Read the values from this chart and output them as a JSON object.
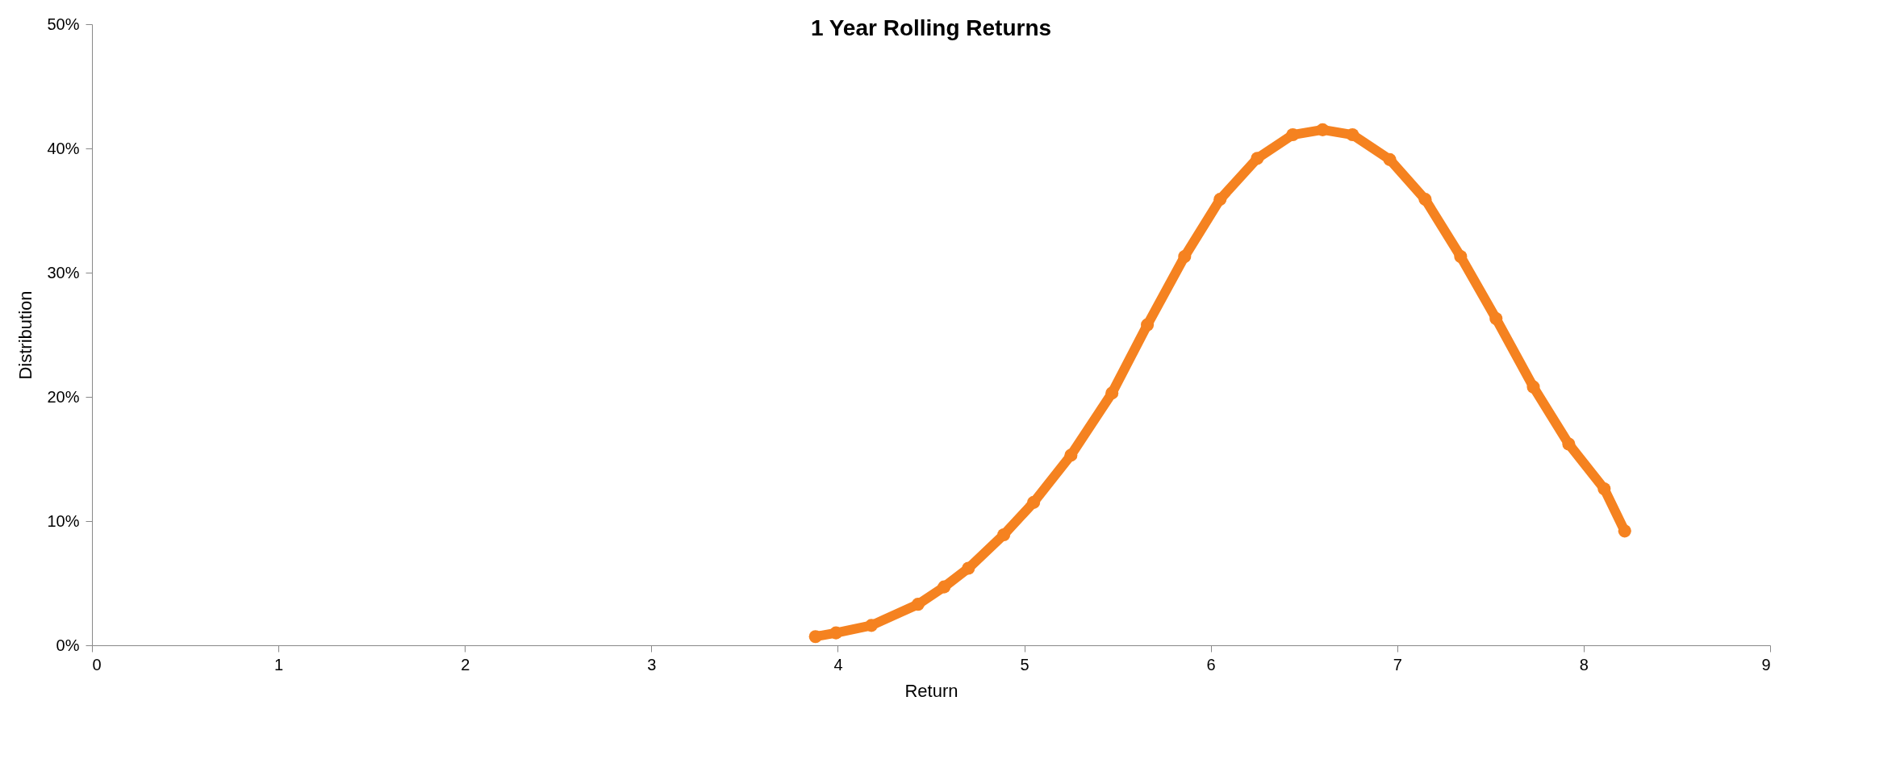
{
  "chart_data": {
    "type": "line",
    "title": "1 Year Rolling Returns",
    "xlabel": "Return",
    "ylabel": "Distribution",
    "x": [
      3.88,
      3.99,
      4.18,
      4.43,
      4.57,
      4.7,
      4.89,
      5.05,
      5.25,
      5.47,
      5.66,
      5.86,
      6.05,
      6.25,
      6.44,
      6.6,
      6.76,
      6.96,
      7.15,
      7.34,
      7.53,
      7.73,
      7.92,
      8.11,
      8.22
    ],
    "series": [
      {
        "color": "#f58220",
        "values": [
          0.7,
          1.0,
          1.6,
          3.3,
          4.7,
          6.2,
          8.9,
          11.5,
          15.3,
          20.3,
          25.8,
          31.3,
          35.9,
          39.2,
          41.1,
          41.5,
          41.1,
          39.1,
          35.9,
          31.3,
          26.3,
          20.8,
          16.2,
          12.6,
          9.2
        ]
      }
    ],
    "xlim": [
      0,
      9
    ],
    "xticks": [
      0,
      1,
      2,
      3,
      4,
      5,
      6,
      7,
      8,
      9
    ],
    "ylim": [
      0,
      50
    ],
    "yticks": [
      {
        "value": 0,
        "label": "0%"
      },
      {
        "value": 10,
        "label": "10%"
      },
      {
        "value": 20,
        "label": "20%"
      },
      {
        "value": 30,
        "label": "30%"
      },
      {
        "value": 40,
        "label": "40%"
      },
      {
        "value": 50,
        "label": "50%"
      }
    ],
    "grid": false,
    "marker": "circle",
    "line_style": "solid"
  }
}
